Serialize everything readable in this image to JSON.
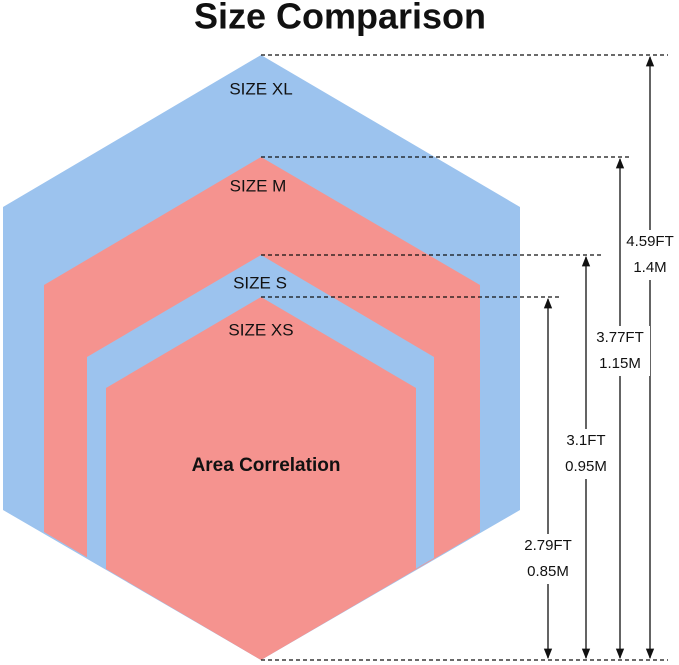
{
  "title": "Size Comparison",
  "center_label": "Area Correlation",
  "sizes": [
    {
      "label": "SIZE XL",
      "feet": "4.59FT",
      "meters": "1.4M"
    },
    {
      "label": "SIZE M",
      "feet": "3.77FT",
      "meters": "1.15M"
    },
    {
      "label": "SIZE S",
      "feet": "3.1FT",
      "meters": "0.95M"
    },
    {
      "label": "SIZE XS",
      "feet": "2.79FT",
      "meters": "0.85M"
    }
  ]
}
